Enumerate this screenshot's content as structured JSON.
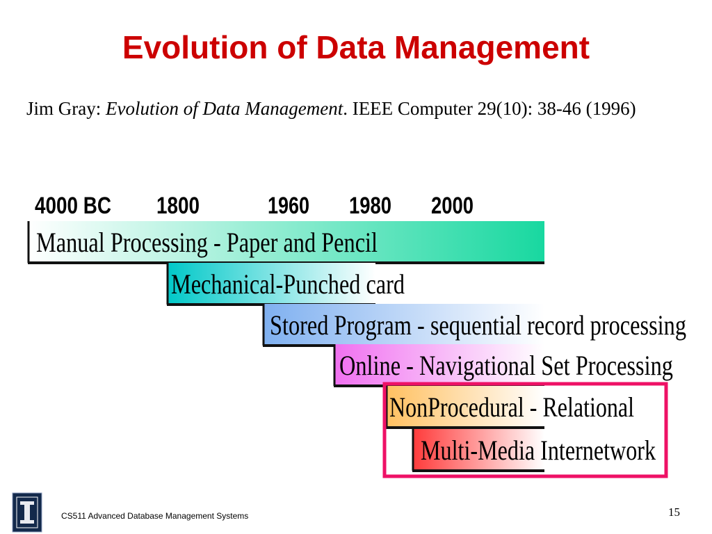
{
  "title": "Evolution of Data Management",
  "citation": {
    "author": "Jim Gray:",
    "work": "Evolution of Data Management",
    "source": ". IEEE Computer 29(10): 38-46 (1996)"
  },
  "timeline": {
    "years": [
      "4000 BC",
      "1800",
      "1960",
      "1980",
      "2000"
    ],
    "eras": [
      "Manual Processing - Paper and Pencil",
      "Mechanical-Punched card",
      "Stored Program - sequential record processing",
      "Online - Navigational Set Processing",
      "NonProcedural - Relational",
      "Multi-Media Internetwork"
    ]
  },
  "footer": {
    "course": "CS511 Advanced Database Management Systems",
    "page": "15"
  }
}
